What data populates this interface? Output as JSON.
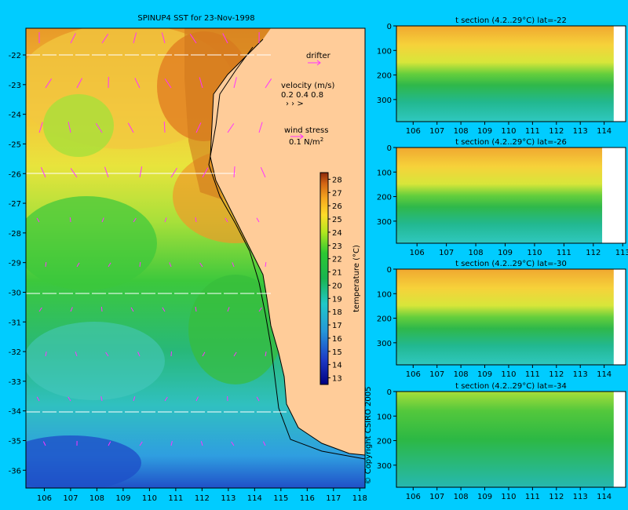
{
  "map": {
    "title": "SPINUP4 SST for 23-Nov-1998",
    "x_ticks": [
      "106",
      "107",
      "108",
      "109",
      "110",
      "111",
      "112",
      "113",
      "114",
      "115",
      "116",
      "117",
      "118"
    ],
    "y_ticks": [
      "-22",
      "-23",
      "-24",
      "-25",
      "-26",
      "-27",
      "-28",
      "-29",
      "-30",
      "-31",
      "-32",
      "-33",
      "-34",
      "-35",
      "-36"
    ],
    "drifter_label": "drifter",
    "velocity_label": "velocity (m/s)",
    "velocity_scale": "0.2 0.4 0.8",
    "wind_label": "wind stress",
    "wind_scale": "0.1 N/m",
    "wind_scale_sup": "2",
    "colorbar_label": "temperature (°C)",
    "colorbar_ticks": [
      "13",
      "14",
      "15",
      "16",
      "17",
      "18",
      "19",
      "20",
      "21",
      "22",
      "23",
      "24",
      "25",
      "26",
      "27",
      "28"
    ],
    "copyright": "© Copyright CSIRO 2005",
    "colors": {
      "land": "#ffcc99",
      "vectors": "#ff33ff",
      "background": "#00ccff"
    }
  },
  "sections": [
    {
      "title": "t section (4.2..29°C) lat=-22",
      "x_ticks": [
        "106",
        "107",
        "108",
        "109",
        "110",
        "111",
        "112",
        "113",
        "114"
      ],
      "y_ticks": [
        "0",
        "100",
        "200",
        "300"
      ]
    },
    {
      "title": "t section (4.2..29°C) lat=-26",
      "x_ticks": [
        "106",
        "107",
        "108",
        "109",
        "110",
        "111",
        "112",
        "113"
      ],
      "y_ticks": [
        "0",
        "100",
        "200",
        "300"
      ]
    },
    {
      "title": "t section (4.2..29°C) lat=-30",
      "x_ticks": [
        "106",
        "107",
        "108",
        "109",
        "110",
        "111",
        "112",
        "113",
        "114"
      ],
      "y_ticks": [
        "0",
        "100",
        "200",
        "300"
      ]
    },
    {
      "title": "t section (4.2..29°C) lat=-34",
      "x_ticks": [
        "106",
        "107",
        "108",
        "109",
        "110",
        "111",
        "112",
        "113",
        "114"
      ],
      "y_ticks": [
        "0",
        "100",
        "200",
        "300"
      ]
    }
  ],
  "chart_data": [
    {
      "type": "heatmap",
      "title": "SPINUP4 SST for 23-Nov-1998",
      "xlabel": "",
      "ylabel": "",
      "xlim": [
        105.3,
        118.2
      ],
      "ylim": [
        -36.6,
        -21.1
      ],
      "colorbar": {
        "label": "temperature (°C)",
        "range": [
          12.5,
          28.5
        ]
      },
      "grid": false,
      "section_latitudes": [
        -22,
        -26,
        -30,
        -34
      ]
    },
    {
      "type": "heatmap",
      "title": "t section (4.2..29°C) lat=-22",
      "xlim": [
        105.3,
        114.9
      ],
      "ylim": [
        0,
        390
      ],
      "grid": false
    },
    {
      "type": "heatmap",
      "title": "t section (4.2..29°C) lat=-26",
      "xlim": [
        105.3,
        113.1
      ],
      "ylim": [
        0,
        390
      ],
      "grid": false
    },
    {
      "type": "heatmap",
      "title": "t section (4.2..29°C) lat=-30",
      "xlim": [
        105.3,
        114.9
      ],
      "ylim": [
        0,
        390
      ],
      "grid": false
    },
    {
      "type": "heatmap",
      "title": "t section (4.2..29°C) lat=-34",
      "xlim": [
        105.3,
        114.9
      ],
      "ylim": [
        0,
        390
      ],
      "grid": false
    }
  ]
}
